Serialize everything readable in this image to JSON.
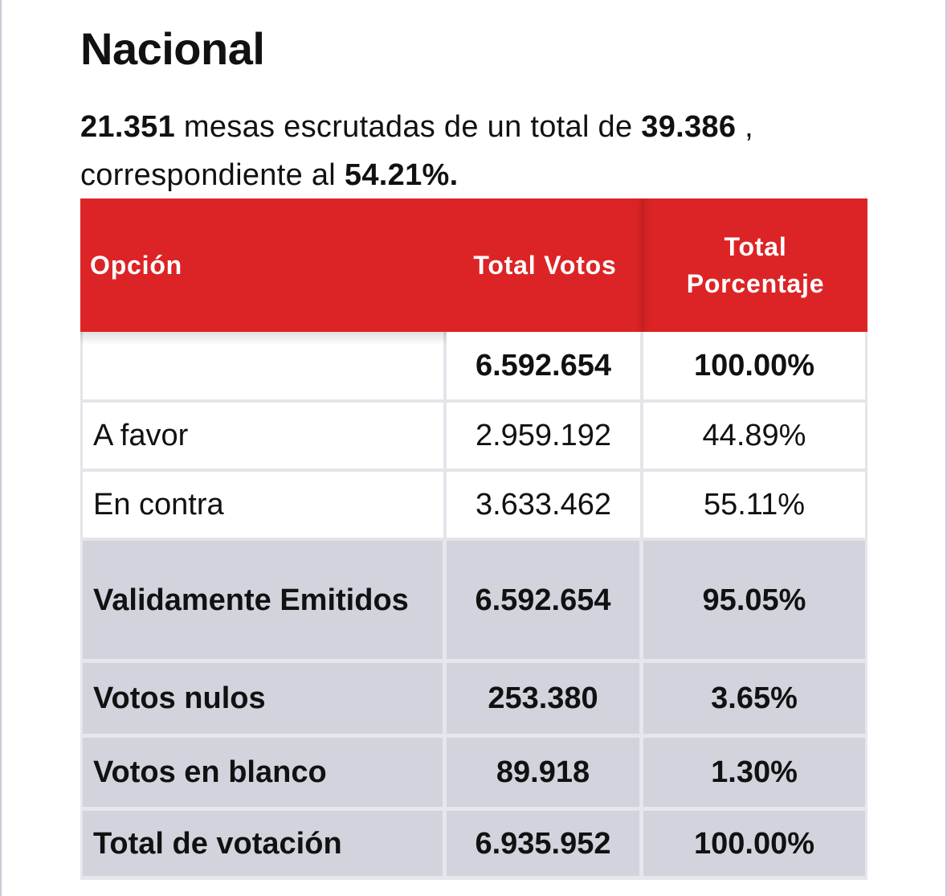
{
  "page": {
    "title": "Nacional"
  },
  "summary": {
    "mesas_escrutadas": "21.351",
    "text_1": " mesas escrutadas de un total de ",
    "total_mesas": "39.386",
    "text_2": " , correspondiente al ",
    "porcentaje": "54.21%."
  },
  "table": {
    "headers": {
      "opcion": "Opción",
      "total_votos": "Total Votos",
      "total_porcentaje": "Total Porcentaje"
    },
    "rows": [
      {
        "opcion": "",
        "votos": "6.592.654",
        "porcentaje": "100.00%"
      },
      {
        "opcion": "A favor",
        "votos": "2.959.192",
        "porcentaje": "44.89%"
      },
      {
        "opcion": "En contra",
        "votos": "3.633.462",
        "porcentaje": "55.11%"
      },
      {
        "opcion": "Validamente Emitidos",
        "votos": "6.592.654",
        "porcentaje": "95.05%"
      },
      {
        "opcion": "Votos nulos",
        "votos": "253.380",
        "porcentaje": "3.65%"
      },
      {
        "opcion": "Votos en blanco",
        "votos": "89.918",
        "porcentaje": "1.30%"
      },
      {
        "opcion": "Total de votación",
        "votos": "6.935.952",
        "porcentaje": "100.00%"
      }
    ]
  },
  "colors": {
    "header_bg": "#dc2426",
    "header_text": "#ffffff",
    "summary_row_bg": "#d1d4dc",
    "grid_line": "#e4e5ea"
  }
}
